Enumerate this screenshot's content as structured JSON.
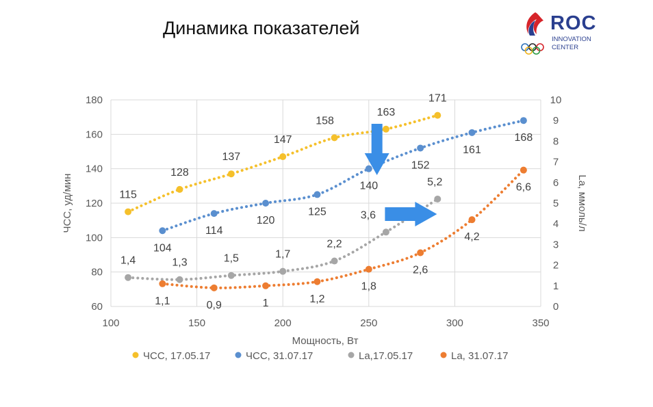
{
  "slide": {
    "title": "Динамика показателей"
  },
  "logo": {
    "main": "ROC",
    "line1": "INNOVATION",
    "line2": "CENTER"
  },
  "chart_data": {
    "type": "scatter",
    "xlabel": "Мощность, Вт",
    "ylabel": "ЧСС, уд/мин",
    "y2label": "La, ммоль/л",
    "xlim": [
      100,
      350
    ],
    "ylim": [
      60,
      180
    ],
    "y2lim": [
      0,
      10
    ],
    "xticks": [
      "100",
      "150",
      "200",
      "250",
      "300",
      "350"
    ],
    "yticks": [
      "60",
      "80",
      "100",
      "120",
      "140",
      "160",
      "180"
    ],
    "y2ticks": [
      "0",
      "1",
      "2",
      "3",
      "4",
      "5",
      "6",
      "7",
      "8",
      "9",
      "10"
    ],
    "grid": true,
    "legend_position": "bottom",
    "trendlines": "dotted",
    "series": [
      {
        "name": "ЧСС, 17.05.17",
        "axis": "left",
        "color": "#f5c02b",
        "x": [
          110,
          140,
          170,
          200,
          230,
          260,
          290
        ],
        "y": [
          115,
          128,
          137,
          147,
          158,
          163,
          171
        ],
        "labels": [
          "115",
          "128",
          "137",
          "147",
          "158",
          "163",
          "171"
        ]
      },
      {
        "name": "ЧСС, 31.07.17",
        "axis": "left",
        "color": "#5a8fcf",
        "x": [
          130,
          160,
          190,
          220,
          250,
          280,
          310,
          340
        ],
        "y": [
          104,
          114,
          120,
          125,
          140,
          152,
          161,
          168
        ],
        "labels": [
          "104",
          "114",
          "120",
          "125",
          "140",
          "152",
          "161",
          "168"
        ]
      },
      {
        "name": "La,17.05.17",
        "axis": "right",
        "color": "#a6a6a6",
        "x": [
          110,
          140,
          170,
          200,
          230,
          260,
          290
        ],
        "y": [
          1.4,
          1.3,
          1.5,
          1.7,
          2.2,
          3.6,
          5.2
        ],
        "labels": [
          "1,4",
          "1,3",
          "1,5",
          "1,7",
          "2,2",
          "3,6",
          "5,2"
        ]
      },
      {
        "name": "La, 31.07.17",
        "axis": "right",
        "color": "#ed7d31",
        "x": [
          130,
          160,
          190,
          220,
          250,
          280,
          310,
          340
        ],
        "y": [
          1.1,
          0.9,
          1,
          1.2,
          1.8,
          2.6,
          4.2,
          6.6
        ],
        "labels": [
          "1,1",
          "0,9",
          "1",
          "1,2",
          "1,8",
          "2,6",
          "4,2",
          "6,6"
        ]
      }
    ],
    "annotations": [
      {
        "type": "arrow",
        "direction": "down",
        "color": "#3a8ee6",
        "x": 240
      },
      {
        "type": "arrow",
        "direction": "right",
        "color": "#3a8ee6",
        "x": 300
      }
    ]
  }
}
